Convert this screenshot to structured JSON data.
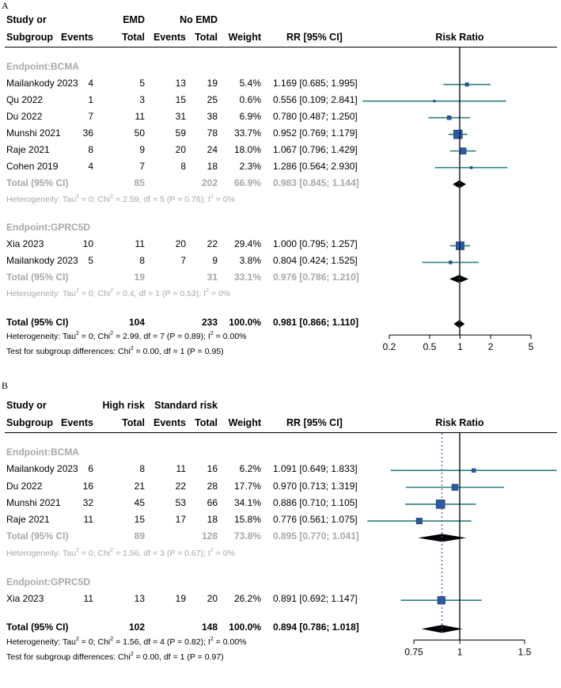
{
  "colors": {
    "ci_line": "#2f7f7f",
    "box_fill": "#2a5aa0",
    "box_stroke": "#1e3e6e",
    "pooled_line": "#7a3fc6",
    "subtotal_text": "#a8a8a8"
  },
  "chart_data": [
    {
      "type": "forest",
      "panel_label": "A",
      "x_scale": "log",
      "xlim": [
        0.2,
        5
      ],
      "ticks": [
        "0.2",
        "0.5",
        "1",
        "2",
        "5"
      ],
      "header": {
        "col_study_1": "Study or",
        "col_study_2": "Subgroup",
        "group1": "EMD",
        "group2": "No EMD",
        "events": "Events",
        "total": "Total",
        "weight": "Weight",
        "rr": "RR [95% CI]",
        "plot": "Risk Ratio"
      },
      "subgroups": [
        {
          "label": "Endpoint:BCMA",
          "studies": [
            {
              "name": "Mailankody  2023",
              "e1": "4",
              "n1": "5",
              "e2": "13",
              "n2": "19",
              "weight": "5.4%",
              "rr_text": "1.169 [0.685; 1.995]",
              "rr": 1.169,
              "lo": 0.685,
              "hi": 1.995
            },
            {
              "name": "Qu  2022",
              "e1": "1",
              "n1": "3",
              "e2": "15",
              "n2": "25",
              "weight": "0.6%",
              "rr_text": "0.556 [0.109; 2.841]",
              "rr": 0.556,
              "lo": 0.109,
              "hi": 2.841
            },
            {
              "name": "Du 2022",
              "e1": "7",
              "n1": "11",
              "e2": "31",
              "n2": "38",
              "weight": "6.9%",
              "rr_text": "0.780 [0.487; 1.250]",
              "rr": 0.78,
              "lo": 0.487,
              "hi": 1.25
            },
            {
              "name": "Munshi 2021",
              "e1": "36",
              "n1": "50",
              "e2": "59",
              "n2": "78",
              "weight": "33.7%",
              "rr_text": "0.952 [0.769; 1.179]",
              "rr": 0.952,
              "lo": 0.769,
              "hi": 1.179
            },
            {
              "name": "Raje 2021",
              "e1": "8",
              "n1": "9",
              "e2": "20",
              "n2": "24",
              "weight": "18.0%",
              "rr_text": "1.067 [0.796; 1.429]",
              "rr": 1.067,
              "lo": 0.796,
              "hi": 1.429
            },
            {
              "name": "Cohen 2019",
              "e1": "4",
              "n1": "7",
              "e2": "8",
              "n2": "18",
              "weight": "2.3%",
              "rr_text": "1.286 [0.564; 2.930]",
              "rr": 1.286,
              "lo": 0.564,
              "hi": 2.93
            }
          ],
          "total": {
            "label": "Total (95% CI)",
            "n1": "85",
            "n2": "202",
            "weight": "66.9%",
            "rr_text": "0.983 [0.845; 1.144]",
            "rr": 0.983,
            "lo": 0.845,
            "hi": 1.144
          },
          "het_prefix": "Heterogeneity: Tau",
          "het_mid": " = 0; Chi",
          "het_suffix": " = 2.59, df = 5 (P = 0.76); I",
          "het_end": " = 0%"
        },
        {
          "label": "Endpoint:GPRC5D",
          "studies": [
            {
              "name": "Xia 2023",
              "e1": "10",
              "n1": "11",
              "e2": "20",
              "n2": "22",
              "weight": "29.4%",
              "rr_text": "1.000 [0.795; 1.257]",
              "rr": 1.0,
              "lo": 0.795,
              "hi": 1.257
            },
            {
              "name": "Mailankody 2023",
              "e1": "5",
              "n1": "8",
              "e2": "7",
              "n2": "9",
              "weight": "3.8%",
              "rr_text": "0.804 [0.424; 1.525]",
              "rr": 0.804,
              "lo": 0.424,
              "hi": 1.525
            }
          ],
          "total": {
            "label": "Total (95% CI)",
            "n1": "19",
            "n2": "31",
            "weight": "33.1%",
            "rr_text": "0.976 [0.786; 1.210]",
            "rr": 0.976,
            "lo": 0.786,
            "hi": 1.21
          },
          "het_prefix": "Heterogeneity: Tau",
          "het_mid": " = 0; Chi",
          "het_suffix": " = 0.4, df = 1 (P = 0.53); I",
          "het_end": " = 0%"
        }
      ],
      "overall": {
        "label": "Total (95% CI)",
        "n1": "104",
        "n2": "233",
        "weight": "100.0%",
        "rr_text": "0.981 [0.866; 1.110]",
        "rr": 0.981,
        "lo": 0.866,
        "hi": 1.11,
        "het_prefix": "Heterogeneity: Tau",
        "het_mid": " = 0; Chi",
        "het_suffix": " = 2.99, df = 7 (P = 0.89); I",
        "het_end": " = 0.00%",
        "test_prefix": "Test for subgroup differences: Chi",
        "test_suffix": " = 0.00, df = 1 (P = 0.95)"
      }
    },
    {
      "type": "forest",
      "panel_label": "B",
      "x_scale": "log",
      "xlim": [
        0.75,
        1.5
      ],
      "ticks": [
        "0.75",
        "1",
        "1.5"
      ],
      "header": {
        "col_study_1": "Study or",
        "col_study_2": "Subgroup",
        "group1": "High risk",
        "group2": "Standard risk",
        "events": "Events",
        "total": "Total",
        "weight": "Weight",
        "rr": "RR [95% CI]",
        "plot": "Risk Ratio"
      },
      "subgroups": [
        {
          "label": "Endpoint:BCMA",
          "studies": [
            {
              "name": "Mailankody  2023",
              "e1": "6",
              "n1": "8",
              "e2": "11",
              "n2": "16",
              "weight": "6.2%",
              "rr_text": "1.091 [0.649; 1.833]",
              "rr": 1.091,
              "lo": 0.649,
              "hi": 1.833
            },
            {
              "name": "Du 2022",
              "e1": "16",
              "n1": "21",
              "e2": "22",
              "n2": "28",
              "weight": "17.7%",
              "rr_text": "0.970 [0.713; 1.319]",
              "rr": 0.97,
              "lo": 0.713,
              "hi": 1.319
            },
            {
              "name": "Munshi 2021",
              "e1": "32",
              "n1": "45",
              "e2": "53",
              "n2": "66",
              "weight": "34.1%",
              "rr_text": "0.886 [0.710; 1.105]",
              "rr": 0.886,
              "lo": 0.71,
              "hi": 1.105
            },
            {
              "name": "Raje 2021",
              "e1": "11",
              "n1": "15",
              "e2": "17",
              "n2": "18",
              "weight": "15.8%",
              "rr_text": "0.776 [0.561; 1.075]",
              "rr": 0.776,
              "lo": 0.561,
              "hi": 1.075
            }
          ],
          "total": {
            "label": "Total (95% CI)",
            "n1": "89",
            "n2": "128",
            "weight": "73.8%",
            "rr_text": "0.895 [0.770; 1.041]",
            "rr": 0.895,
            "lo": 0.77,
            "hi": 1.041
          },
          "het_prefix": "Heterogeneity: Tau",
          "het_mid": " = 0; Chi",
          "het_suffix": " = 1.56, df = 3 (P = 0.67); I",
          "het_end": " = 0%"
        },
        {
          "label": "Endpoint:GPRC5D",
          "studies": [
            {
              "name": "Xia 2023",
              "e1": "11",
              "n1": "13",
              "e2": "19",
              "n2": "20",
              "weight": "26.2%",
              "rr_text": "0.891 [0.692; 1.147]",
              "rr": 0.891,
              "lo": 0.692,
              "hi": 1.147
            }
          ],
          "total": null
        }
      ],
      "overall": {
        "label": "Total (95% CI)",
        "n1": "102",
        "n2": "148",
        "weight": "100.0%",
        "rr_text": "0.894 [0.786; 1.018]",
        "rr": 0.894,
        "lo": 0.786,
        "hi": 1.018,
        "het_prefix": "Heterogeneity: Tau",
        "het_mid": " = 0; Chi",
        "het_suffix": " = 1.56, df = 4 (P = 0.82); I",
        "het_end": " = 0.00%",
        "test_prefix": "Test for subgroup differences: Chi",
        "test_suffix": " = 0.00, df = 1 (P = 0.97)"
      }
    }
  ]
}
